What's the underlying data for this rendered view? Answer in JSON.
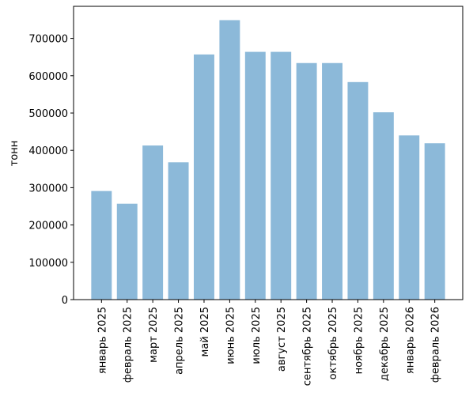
{
  "chart_data": {
    "type": "bar",
    "y_label": "тонн",
    "categories": [
      "январь 2025",
      "февраль 2025",
      "март 2025",
      "апрель 2025",
      "май 2025",
      "июнь 2025",
      "июль 2025",
      "август 2025",
      "сентябрь 2025",
      "октябрь 2025",
      "ноябрь 2025",
      "декабрь 2025",
      "январь 2026",
      "февраль 2026"
    ],
    "values": [
      291000,
      257000,
      413000,
      368000,
      657000,
      749000,
      664000,
      664000,
      634000,
      634000,
      583000,
      502000,
      440000,
      419000
    ],
    "color": "#8cb9d9",
    "ylim": [
      0,
      786000
    ],
    "yticks": [
      0,
      100000,
      200000,
      300000,
      400000,
      500000,
      600000,
      700000
    ],
    "grid": false
  }
}
